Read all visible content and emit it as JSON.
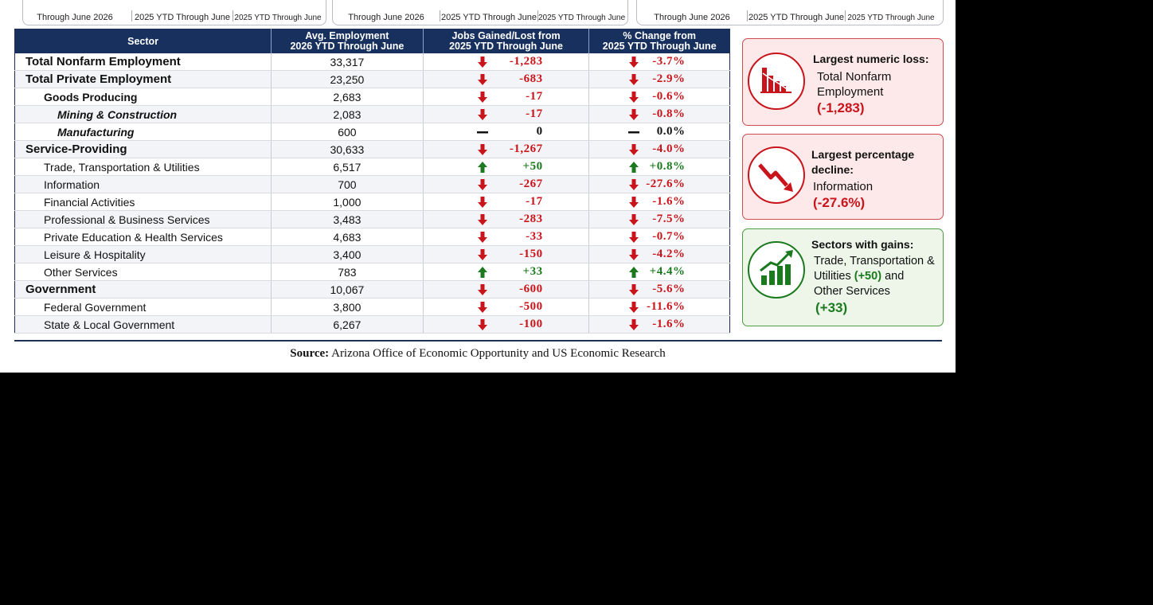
{
  "top_cards": [
    {
      "labels": [
        "Through June 2026",
        "2025 YTD Through June",
        "2025 YTD Through June"
      ]
    },
    {
      "labels": [
        "Through June 2026",
        "2025 YTD Through June",
        "2025 YTD Through June"
      ]
    },
    {
      "labels": [
        "Through June 2026",
        "2025 YTD Through June",
        "2025 YTD Through June"
      ]
    }
  ],
  "table": {
    "headers": {
      "sector": "Sector",
      "avg_line1": "Avg. Employment",
      "avg_line2": "2026 YTD Through June",
      "jobs_line1": "Jobs Gained/Lost from",
      "jobs_line2": "2025 YTD Through June",
      "pct_line1": "% Change from",
      "pct_line2": "2025 YTD Through June"
    },
    "rows": [
      {
        "sector": "Total Nonfarm Employment",
        "avg": "33,317",
        "jobs": "-1,283",
        "pct": "-3.7%",
        "dir": "down",
        "level": 0
      },
      {
        "sector": "Total Private Employment",
        "avg": "23,250",
        "jobs": "-683",
        "pct": "-2.9%",
        "dir": "down",
        "level": 0
      },
      {
        "sector": "Goods Producing",
        "avg": "2,683",
        "jobs": "-17",
        "pct": "-0.6%",
        "dir": "down",
        "level": 1
      },
      {
        "sector": "Mining & Construction",
        "avg": "2,083",
        "jobs": "-17",
        "pct": "-0.8%",
        "dir": "down",
        "level": 2
      },
      {
        "sector": "Manufacturing",
        "avg": "600",
        "jobs": "0",
        "pct": "0.0%",
        "dir": "flat",
        "level": 2
      },
      {
        "sector": "Service-Providing",
        "avg": "30,633",
        "jobs": "-1,267",
        "pct": "-4.0%",
        "dir": "down",
        "level": 0
      },
      {
        "sector": "Trade, Transportation & Utilities",
        "avg": "6,517",
        "jobs": "+50",
        "pct": "+0.8%",
        "dir": "up",
        "level": 3
      },
      {
        "sector": "Information",
        "avg": "700",
        "jobs": "-267",
        "pct": "-27.6%",
        "dir": "down",
        "level": 3
      },
      {
        "sector": "Financial Activities",
        "avg": "1,000",
        "jobs": "-17",
        "pct": "-1.6%",
        "dir": "down",
        "level": 3
      },
      {
        "sector": "Professional & Business Services",
        "avg": "3,483",
        "jobs": "-283",
        "pct": "-7.5%",
        "dir": "down",
        "level": 3
      },
      {
        "sector": "Private Education & Health Services",
        "avg": "4,683",
        "jobs": "-33",
        "pct": "-0.7%",
        "dir": "down",
        "level": 3
      },
      {
        "sector": "Leisure & Hospitality",
        "avg": "3,400",
        "jobs": "-150",
        "pct": "-4.2%",
        "dir": "down",
        "level": 3
      },
      {
        "sector": "Other Services",
        "avg": "783",
        "jobs": "+33",
        "pct": "+4.4%",
        "dir": "up",
        "level": 3
      },
      {
        "sector": "Government",
        "avg": "10,067",
        "jobs": "-600",
        "pct": "-5.6%",
        "dir": "down",
        "level": 0
      },
      {
        "sector": "Federal Government",
        "avg": "3,800",
        "jobs": "-500",
        "pct": "-11.6%",
        "dir": "down",
        "level": 3
      },
      {
        "sector": "State & Local Government",
        "avg": "6,267",
        "jobs": "-100",
        "pct": "-1.6%",
        "dir": "down",
        "level": 3
      }
    ]
  },
  "cards": {
    "numeric_loss": {
      "title": "Largest numeric loss:",
      "line1": "Total Nonfarm",
      "line2": "Employment",
      "value": "(-1,283)",
      "icon": "declining-bar-chart-icon"
    },
    "percentage_decline": {
      "title_line1": "Largest percentage",
      "title_line2": "decline:",
      "line1": "Information",
      "value": "(-27.6%)",
      "icon": "downward-trend-arrow-icon"
    },
    "gains": {
      "title": "Sectors with gains:",
      "line1": "Trade, Transportation &",
      "line2_pre": "Utilities",
      "line2_val": "(+50)",
      "line2_post": "and",
      "line3": "Other Services",
      "value": "(+33)",
      "icon": "rising-bar-chart-icon"
    }
  },
  "source": {
    "label": "Source:",
    "text": "Arizona Office of Economic Opportunity and US Economic Research"
  },
  "colors": {
    "header_navy": "#17305e",
    "loss_red": "#c8141a",
    "gain_green": "#1b7a1e"
  }
}
